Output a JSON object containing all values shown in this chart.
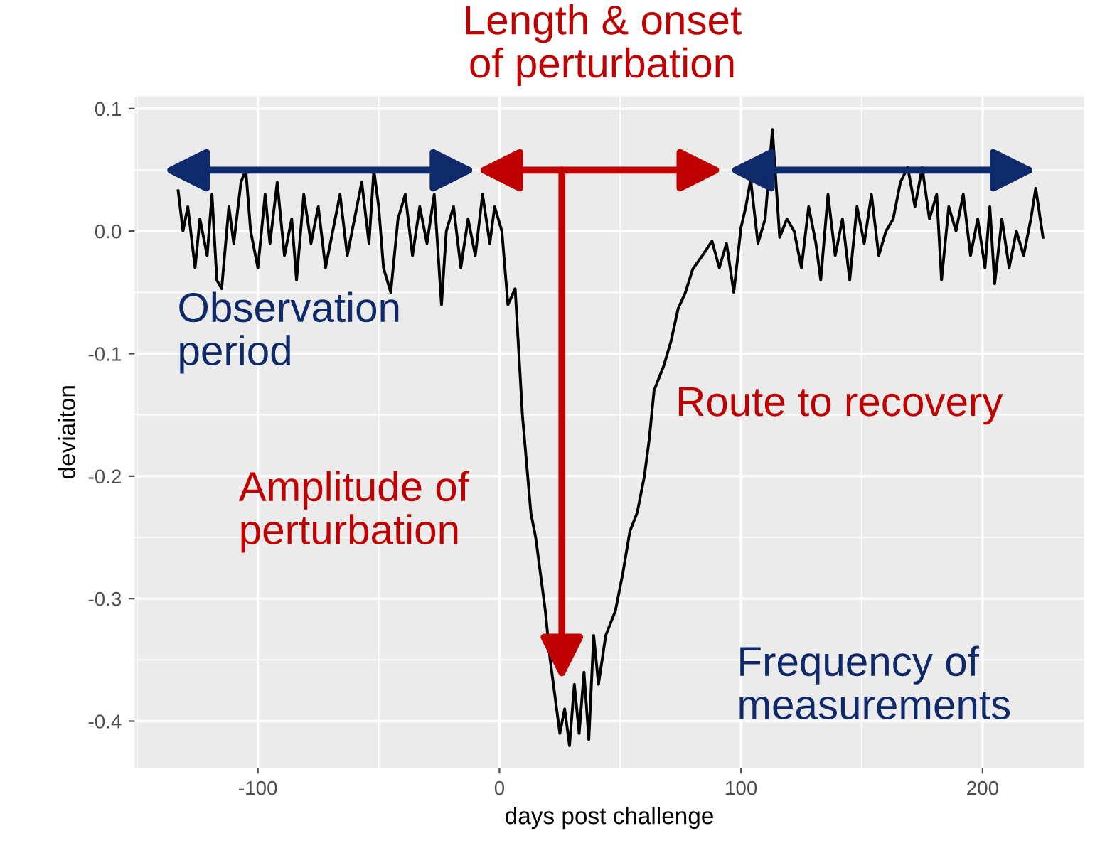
{
  "chart_data": {
    "type": "line",
    "xlabel": "days post challenge",
    "ylabel": "deviaiton",
    "xlim": [
      -151,
      242
    ],
    "ylim": [
      -0.438,
      0.11
    ],
    "xticks": [
      -100,
      0,
      100,
      200
    ],
    "yticks": [
      {
        "value": -0.4,
        "label": "-0.4"
      },
      {
        "value": -0.3,
        "label": "-0.3"
      },
      {
        "value": -0.2,
        "label": "-0.2"
      },
      {
        "value": -0.1,
        "label": "-0.1"
      },
      {
        "value": 0.0,
        "label": "0.0"
      },
      {
        "value": 0.1,
        "label": "0.1"
      }
    ],
    "grid": true,
    "line_style": "solid",
    "marker": "none",
    "series": [
      {
        "color": "#000000",
        "x": [
          -133,
          -131,
          -129,
          -126,
          -124,
          -121,
          -119,
          -117,
          -115,
          -112,
          -110,
          -107,
          -105,
          -103,
          -100,
          -97,
          -95,
          -92,
          -89,
          -86,
          -84,
          -81,
          -78,
          -75,
          -72,
          -69,
          -66,
          -63,
          -60,
          -57,
          -54,
          -52,
          -50,
          -48,
          -45,
          -42,
          -39,
          -36,
          -33,
          -30,
          -27,
          -24,
          -22,
          -19,
          -16,
          -13,
          -10,
          -7,
          -4,
          -2,
          1,
          3.5,
          6.5,
          9.5,
          13,
          15,
          17,
          19,
          21,
          23,
          25,
          27,
          29,
          31,
          33,
          35,
          37,
          39,
          41,
          44,
          48,
          51,
          54,
          57,
          60,
          62,
          64,
          66,
          68,
          71,
          74,
          77,
          80,
          84,
          88,
          91,
          94,
          97,
          100,
          102,
          104,
          107,
          110,
          113,
          116,
          119,
          122,
          125,
          128,
          131,
          133,
          136,
          139,
          142,
          145,
          148,
          151,
          154,
          157,
          160,
          163,
          166,
          169,
          172,
          175,
          178,
          181,
          183,
          186,
          189,
          192,
          195,
          198,
          201,
          203,
          205,
          208,
          211,
          214,
          217,
          220,
          222,
          225
        ],
        "values": [
          0.033,
          0.0,
          0.02,
          -0.03,
          0.01,
          -0.02,
          0.03,
          -0.04,
          -0.047,
          0.02,
          -0.01,
          0.04,
          0.05,
          0.0,
          -0.03,
          0.03,
          -0.01,
          0.04,
          -0.02,
          0.01,
          -0.04,
          0.03,
          -0.01,
          0.02,
          -0.03,
          0.0,
          0.03,
          -0.02,
          0.01,
          0.04,
          -0.01,
          0.05,
          0.02,
          -0.03,
          -0.05,
          0.01,
          0.03,
          -0.02,
          0.02,
          -0.01,
          0.03,
          -0.06,
          0.0,
          0.02,
          -0.03,
          0.01,
          -0.02,
          0.03,
          -0.01,
          0.02,
          0.0,
          -0.06,
          -0.047,
          -0.15,
          -0.23,
          -0.25,
          -0.28,
          -0.31,
          -0.35,
          -0.38,
          -0.41,
          -0.39,
          -0.42,
          -0.37,
          -0.41,
          -0.36,
          -0.415,
          -0.33,
          -0.37,
          -0.33,
          -0.31,
          -0.28,
          -0.245,
          -0.23,
          -0.2,
          -0.17,
          -0.13,
          -0.12,
          -0.11,
          -0.09,
          -0.063,
          -0.05,
          -0.031,
          -0.02,
          -0.008,
          -0.03,
          -0.01,
          -0.05,
          0.003,
          0.02,
          0.042,
          -0.01,
          0.01,
          0.083,
          -0.005,
          0.01,
          0.0,
          -0.03,
          0.02,
          -0.01,
          -0.04,
          0.03,
          -0.02,
          0.01,
          -0.04,
          0.02,
          -0.01,
          0.03,
          -0.02,
          0.0,
          0.01,
          0.04,
          0.052,
          0.02,
          0.052,
          0.01,
          0.03,
          -0.04,
          0.02,
          0.0,
          0.03,
          -0.02,
          0.01,
          -0.03,
          0.02,
          -0.043,
          0.01,
          -0.03,
          0.0,
          -0.02,
          0.01,
          0.035,
          -0.005
        ]
      }
    ],
    "annotations": [
      "Length & onset\nof perturbation",
      "Observation\nperiod",
      "Route to recovery",
      "Amplitude of\nperturbation",
      "Frequency of\nmeasurements"
    ]
  }
}
